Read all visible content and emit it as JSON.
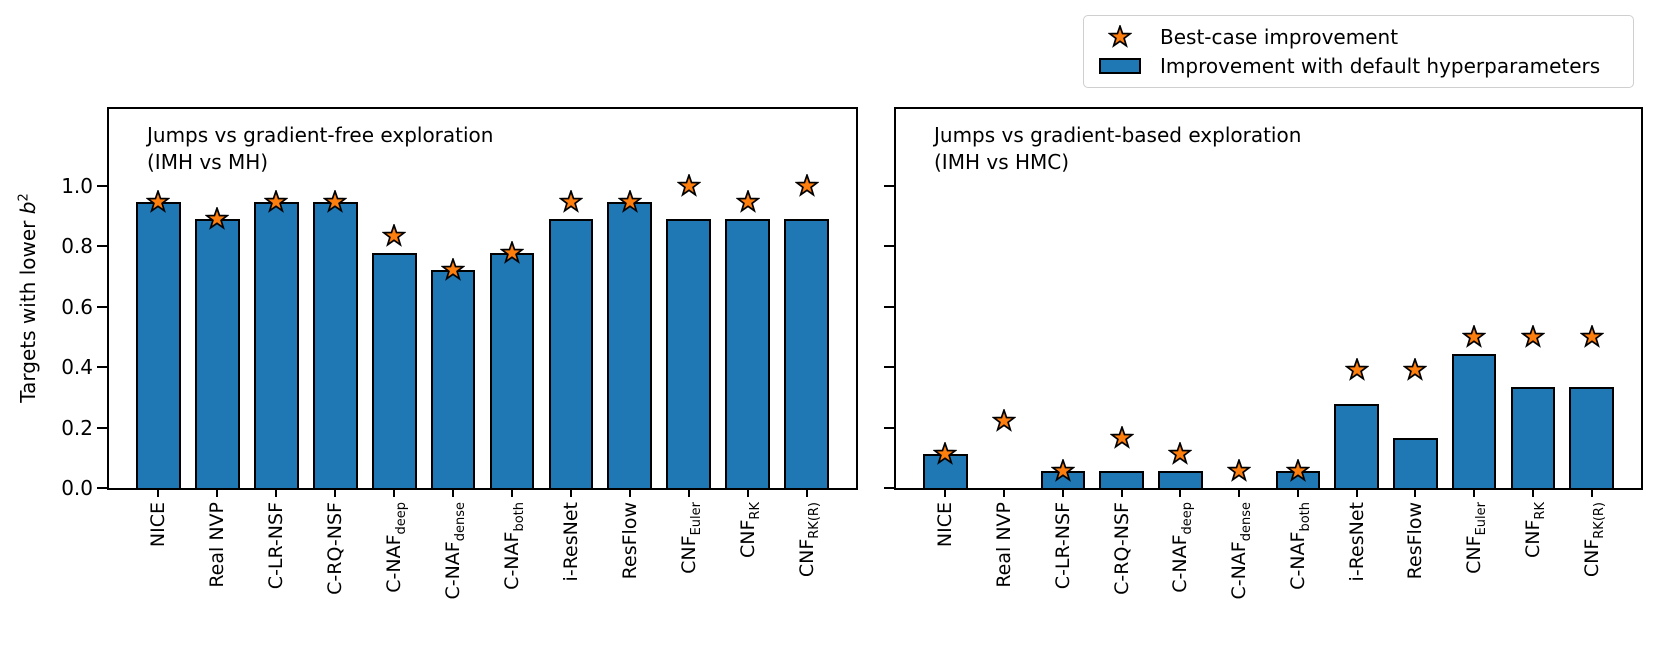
{
  "figure": {
    "background": "#ffffff",
    "ylabel": {
      "prefix": "Targets with lower ",
      "variable": "b",
      "superscript": "2"
    },
    "legend": {
      "items": [
        {
          "marker": "star-icon",
          "label": "Best-case improvement"
        },
        {
          "marker": "bar-swatch",
          "label": "Improvement with default hyperparameters"
        }
      ]
    },
    "colors": {
      "bar_fill": "#1f77b4",
      "star_fill": "#ff7f0e",
      "edge": "#000000",
      "legend_border": "#cfcfcf"
    }
  },
  "chart_data": [
    {
      "type": "bar",
      "title_lines": [
        "Jumps vs gradient-free exploration",
        "(IMH vs MH)"
      ],
      "categories": [
        {
          "base": "NICE",
          "sub": ""
        },
        {
          "base": "Real NVP",
          "sub": ""
        },
        {
          "base": "C-LR-NSF",
          "sub": ""
        },
        {
          "base": "C-RQ-NSF",
          "sub": ""
        },
        {
          "base": "C-NAF",
          "sub": "deep"
        },
        {
          "base": "C-NAF",
          "sub": "dense"
        },
        {
          "base": "C-NAF",
          "sub": "both"
        },
        {
          "base": "i-ResNet",
          "sub": ""
        },
        {
          "base": "ResFlow",
          "sub": ""
        },
        {
          "base": "CNF",
          "sub": "Euler"
        },
        {
          "base": "CNF",
          "sub": "RK"
        },
        {
          "base": "CNF",
          "sub": "RK(R)"
        }
      ],
      "series": [
        {
          "name": "Improvement with default hyperparameters",
          "style": "bar",
          "values": [
            0.944,
            0.889,
            0.944,
            0.944,
            0.778,
            0.722,
            0.778,
            0.889,
            0.944,
            0.889,
            0.889,
            0.889
          ]
        },
        {
          "name": "Best-case improvement",
          "style": "star",
          "values": [
            0.944,
            0.889,
            0.944,
            0.944,
            0.833,
            0.722,
            0.778,
            0.944,
            0.944,
            1.0,
            0.944,
            1.0
          ]
        }
      ],
      "ylim": [
        0.0,
        1.25
      ],
      "yticks": [
        "0.0",
        "0.2",
        "0.4",
        "0.6",
        "0.8",
        "1.0"
      ],
      "show_ytick_labels": true,
      "grid": false,
      "ylabel": "Targets with lower b^2"
    },
    {
      "type": "bar",
      "title_lines": [
        "Jumps vs gradient-based exploration",
        "(IMH vs HMC)"
      ],
      "categories": [
        {
          "base": "NICE",
          "sub": ""
        },
        {
          "base": "Real NVP",
          "sub": ""
        },
        {
          "base": "C-LR-NSF",
          "sub": ""
        },
        {
          "base": "C-RQ-NSF",
          "sub": ""
        },
        {
          "base": "C-NAF",
          "sub": "deep"
        },
        {
          "base": "C-NAF",
          "sub": "dense"
        },
        {
          "base": "C-NAF",
          "sub": "both"
        },
        {
          "base": "i-ResNet",
          "sub": ""
        },
        {
          "base": "ResFlow",
          "sub": ""
        },
        {
          "base": "CNF",
          "sub": "Euler"
        },
        {
          "base": "CNF",
          "sub": "RK"
        },
        {
          "base": "CNF",
          "sub": "RK(R)"
        }
      ],
      "series": [
        {
          "name": "Improvement with default hyperparameters",
          "style": "bar",
          "values": [
            0.111,
            0.0,
            0.056,
            0.056,
            0.056,
            0.0,
            0.056,
            0.278,
            0.167,
            0.444,
            0.333,
            0.333
          ]
        },
        {
          "name": "Best-case improvement",
          "style": "star",
          "values": [
            0.111,
            0.222,
            0.056,
            0.167,
            0.111,
            0.056,
            0.056,
            0.389,
            0.389,
            0.5,
            0.5,
            0.5
          ]
        }
      ],
      "ylim": [
        0.0,
        1.25
      ],
      "yticks": [
        "0.0",
        "0.2",
        "0.4",
        "0.6",
        "0.8",
        "1.0"
      ],
      "show_ytick_labels": false,
      "grid": false,
      "ylabel": ""
    }
  ]
}
